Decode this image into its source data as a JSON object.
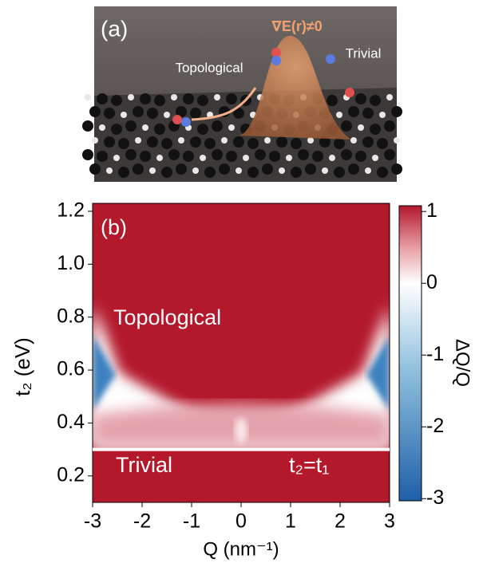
{
  "panel_a": {
    "label": "(a)",
    "field_label": "∇E(r)≠0",
    "left_label": "Topological",
    "right_label": "Trivial"
  },
  "chart_data": {
    "type": "heatmap",
    "panel_label": "(b)",
    "x_label": "Q (nm⁻¹)",
    "y_label": "t₂ (eV)",
    "colorbar_label": "ΔQ/Q",
    "xlim": [
      -3.0,
      3.0
    ],
    "xticks": [
      -3,
      -2,
      -1,
      0,
      1,
      2,
      3
    ],
    "ylim": [
      0.1,
      1.23
    ],
    "yticks": [
      0.2,
      0.4,
      0.6,
      0.8,
      {
        "value": 1.0,
        "label": "1.0"
      },
      1.2
    ],
    "clim": [
      -3.03,
      1.08
    ],
    "cticks": [
      -3,
      -2,
      -1,
      0,
      1
    ],
    "boundary_y": 0.3,
    "annotations": {
      "upper": "Topological",
      "lower": "Trivial",
      "boundary": "t₂=t₁"
    }
  }
}
